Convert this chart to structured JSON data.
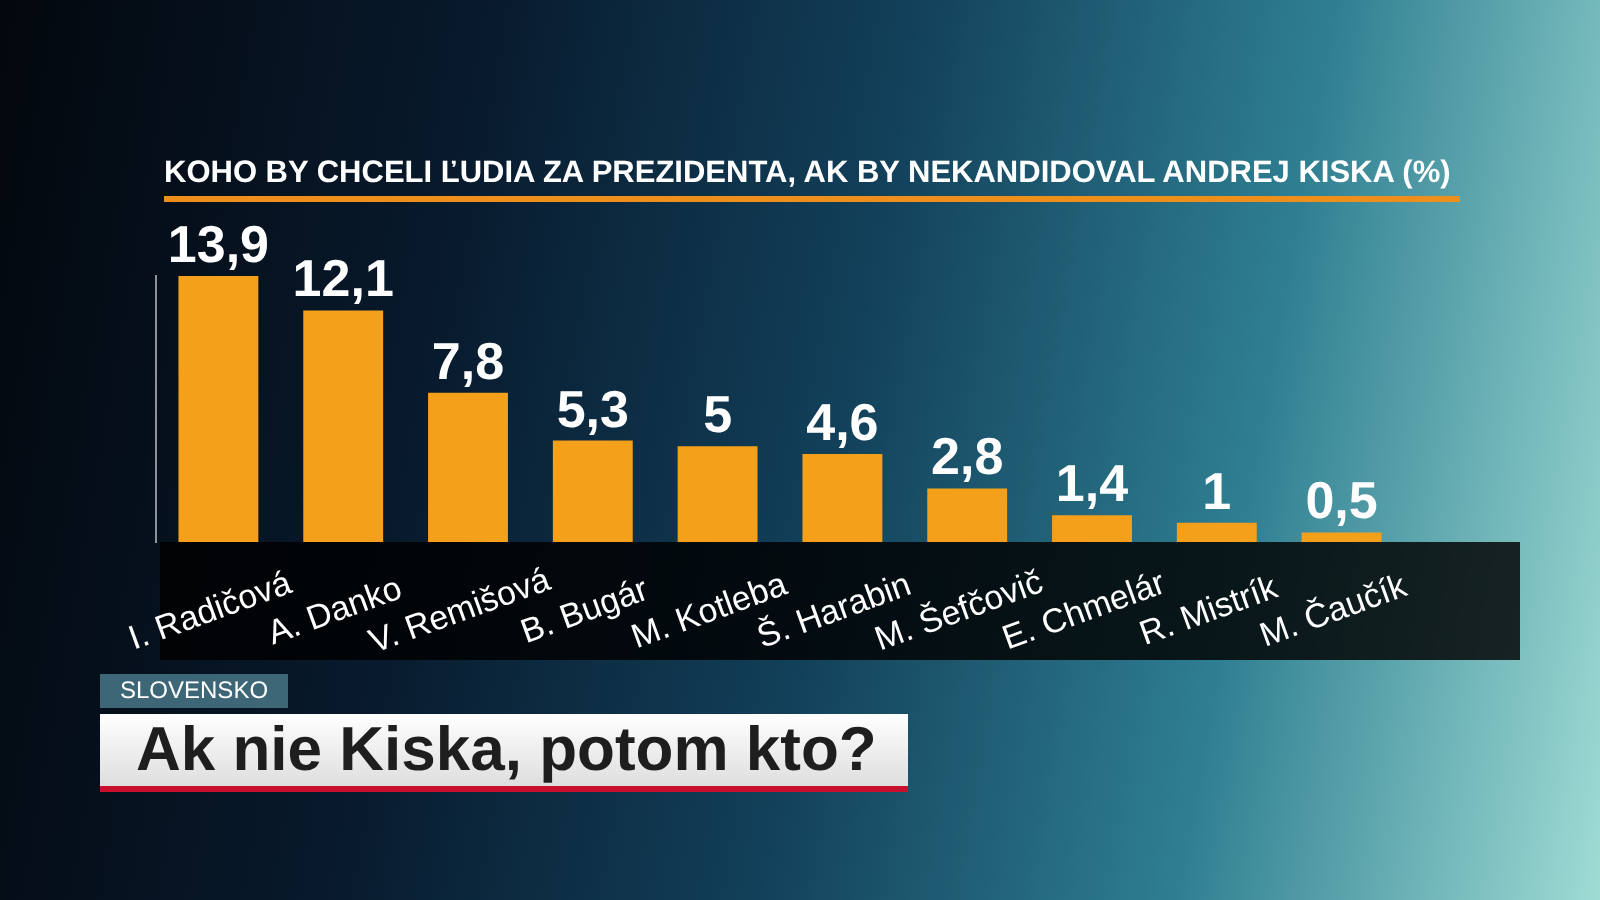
{
  "chart_data": {
    "type": "bar",
    "title": "KOHO BY CHCELI ĽUDIA ZA PREZIDENTA, AK BY NEKANDIDOVAL ANDREJ KISKA (%)",
    "categories": [
      "I. Radičová",
      "A. Danko",
      "V. Remišová",
      "B. Bugár",
      "M. Kotleba",
      "Š. Harabin",
      "M. Šefčovič",
      "E. Chmelár",
      "R. Mistrík",
      "M. Čaučík"
    ],
    "values": [
      13.9,
      12.1,
      7.8,
      5.3,
      5,
      4.6,
      2.8,
      1.4,
      1,
      0.5
    ],
    "value_labels": [
      "13,9",
      "12,1",
      "7,8",
      "5,3",
      "5",
      "4,6",
      "2,8",
      "1,4",
      "1",
      "0,5"
    ],
    "color": "#f5a01a",
    "annotations": [
      "SLOVENSKO",
      "Ak nie Kiska, potom kto?"
    ]
  }
}
